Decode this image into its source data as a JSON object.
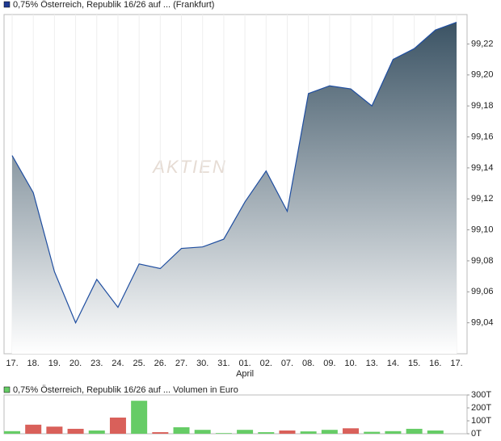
{
  "chart_data": [
    {
      "type": "area",
      "legend": "0,75% Österreich, Republik 16/26 auf ... (Frankfurt)",
      "watermark": "AKTIEN",
      "categories": [
        "17.",
        "18.",
        "19.",
        "20.",
        "23.",
        "24.",
        "25.",
        "26.",
        "27.",
        "30.",
        "31.",
        "01.",
        "02.",
        "07.",
        "08.",
        "09.",
        "10.",
        "13.",
        "14.",
        "15.",
        "16.",
        "17."
      ],
      "annotations": [
        {
          "text": "April",
          "category": "01."
        }
      ],
      "series": [
        {
          "name": "0,75% Österreich, Republik 16/26 auf ... (Frankfurt)",
          "color": "#1f4ea0",
          "values": [
            99.148,
            99.124,
            99.073,
            99.04,
            99.068,
            99.05,
            99.078,
            99.075,
            99.088,
            99.089,
            99.094,
            99.118,
            99.138,
            99.112,
            99.188,
            99.193,
            99.191,
            99.18,
            99.21,
            99.217,
            99.229,
            99.234
          ]
        }
      ],
      "ylim": [
        99.02,
        99.239
      ],
      "yticks": [
        {
          "value": 99.04,
          "label": "99,04"
        },
        {
          "value": 99.06,
          "label": "99,06"
        },
        {
          "value": 99.08,
          "label": "99,08"
        },
        {
          "value": 99.1,
          "label": "99,10"
        },
        {
          "value": 99.12,
          "label": "99,12"
        },
        {
          "value": 99.14,
          "label": "99,14"
        },
        {
          "value": 99.16,
          "label": "99,16"
        },
        {
          "value": 99.18,
          "label": "99,18"
        },
        {
          "value": 99.2,
          "label": "99,20"
        },
        {
          "value": 99.22,
          "label": "99,22"
        }
      ]
    },
    {
      "type": "bar",
      "legend": "0,75% Österreich, Republik 16/26 auf ... Volumen in Euro",
      "legend_color": "#66cc66",
      "values": [
        20,
        70,
        55,
        38,
        25,
        125,
        255,
        12,
        50,
        30,
        5,
        30,
        12,
        25,
        18,
        30,
        42,
        15,
        20,
        38,
        25,
        0
      ],
      "colors": [
        "#66cc66",
        "#d9605a",
        "#d9605a",
        "#d9605a",
        "#66cc66",
        "#d9605a",
        "#66cc66",
        "#d9605a",
        "#66cc66",
        "#66cc66",
        "#66cc66",
        "#66cc66",
        "#66cc66",
        "#d9605a",
        "#66cc66",
        "#66cc66",
        "#d9605a",
        "#66cc66",
        "#66cc66",
        "#66cc66",
        "#66cc66",
        "#66cc66"
      ],
      "ylim": [
        0,
        300
      ],
      "yticks": [
        {
          "value": 0,
          "label": "0T"
        },
        {
          "value": 100,
          "label": "100T"
        },
        {
          "value": 200,
          "label": "200T"
        },
        {
          "value": 300,
          "label": "300T"
        }
      ]
    }
  ]
}
